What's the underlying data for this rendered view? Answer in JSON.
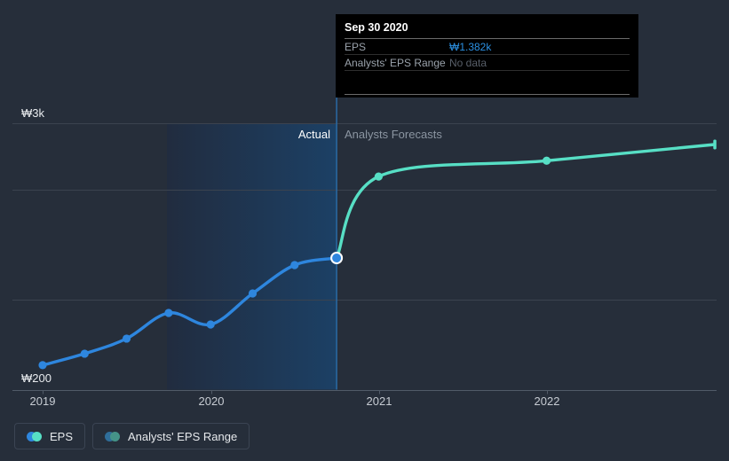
{
  "tooltip": {
    "title": "Sep 30 2020",
    "rows": [
      {
        "label": "EPS",
        "value": "₩1.382k",
        "value_color": "#2b90e2"
      },
      {
        "label": "Analysts' EPS Range",
        "value": "No data",
        "value_color": "#585f69"
      }
    ]
  },
  "annotations": {
    "actual_label": "Actual",
    "forecast_label": "Analysts Forecasts"
  },
  "y_axis": {
    "top_label": "₩3k",
    "bottom_label": "₩200"
  },
  "x_axis": {
    "ticks": [
      "2019",
      "2020",
      "2021",
      "2022"
    ]
  },
  "legend": {
    "items": [
      {
        "label": "EPS",
        "icon": "eps-series-dots-icon",
        "colors": [
          "#2e86de",
          "#57dfc5"
        ]
      },
      {
        "label": "Analysts' EPS Range",
        "icon": "eps-range-dots-icon",
        "colors": [
          "#2f6e9a",
          "#459388"
        ]
      }
    ]
  },
  "colors": {
    "background": "#262e3a",
    "grid": "#3b434f",
    "axis": "#515b68",
    "actual_line": "#2e86de",
    "forecast_line": "#57dfc5",
    "divider": "#2a6aa5",
    "band_left": "#212c3f",
    "band_right": "#1c4065",
    "hover_ring": "#ffffff",
    "tooltip_bg": "#000000"
  },
  "chart_data": {
    "type": "line",
    "title": "EPS actual vs analysts forecasts (KRW)",
    "currency": "KRW",
    "ylabel": "EPS",
    "xlabel": "",
    "ylim_top_value": 3000,
    "hover_point": {
      "date": "Sep 30 2020",
      "t": 2020.75,
      "value": 1382
    },
    "divider_t": 2020.75,
    "highlight_band": {
      "start_t": 2019.74,
      "end_t": 2020.75
    },
    "series": [
      {
        "name": "EPS (actual)",
        "color": "#2e86de",
        "x": [
          2019.0,
          2019.25,
          2019.5,
          2019.75,
          2020.0,
          2020.25,
          2020.5,
          2020.75
        ],
        "values": [
          95,
          233,
          414,
          722,
          584,
          956,
          1297,
          1382
        ],
        "dots": [
          0,
          1,
          2,
          3,
          4,
          5,
          6,
          7
        ]
      },
      {
        "name": "EPS (analysts forecast)",
        "color": "#57dfc5",
        "x": [
          2020.75,
          2021.0,
          2022.0,
          2023.0
        ],
        "values": [
          1382,
          2360,
          2550,
          2745
        ],
        "dots": [
          1,
          2
        ],
        "end_cap": true
      }
    ],
    "x_tick_years": [
      2019,
      2020,
      2021,
      2022
    ],
    "legend_position": "bottom-left",
    "grid": true
  }
}
